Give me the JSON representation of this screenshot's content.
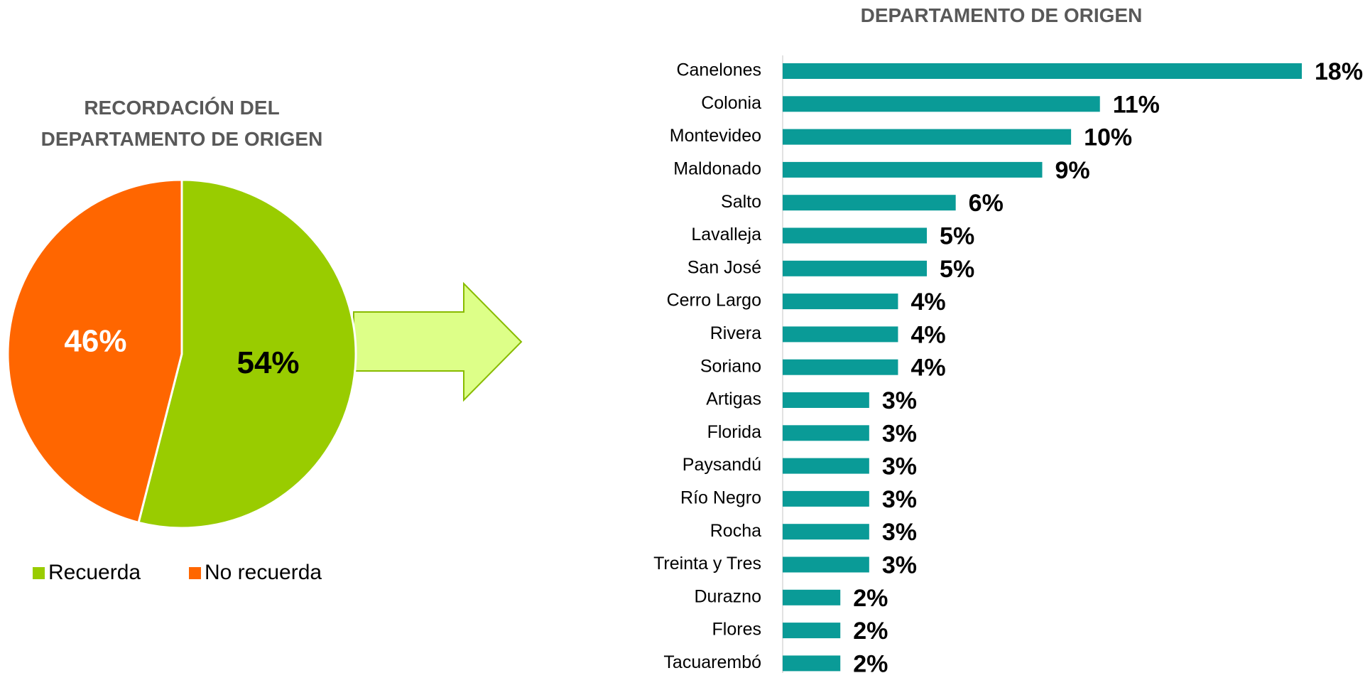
{
  "chart_data": [
    {
      "type": "pie",
      "title": "RECORDACIÓN DEL\nDEPARTAMENTO DE ORIGEN",
      "categories": [
        "Recuerda",
        "No recuerda"
      ],
      "values": [
        54,
        46
      ],
      "value_labels": [
        "54%",
        "46%"
      ],
      "colors": [
        "#99cc00",
        "#ff6600"
      ],
      "label_colors": [
        "#000000",
        "#ffffff"
      ],
      "legend": "bottom"
    },
    {
      "type": "hbar",
      "title": "DEPARTAMENTO DE ORIGEN",
      "categories": [
        "Canelones",
        "Colonia",
        "Montevideo",
        "Maldonado",
        "Salto",
        "Lavalleja",
        "San José",
        "Cerro Largo",
        "Rivera",
        "Soriano",
        "Artigas",
        "Florida",
        "Paysandú",
        "Río Negro",
        "Rocha",
        "Treinta y Tres",
        "Durazno",
        "Flores",
        "Tacuarembó"
      ],
      "values": [
        18,
        11,
        10,
        9,
        6,
        5,
        5,
        4,
        4,
        4,
        3,
        3,
        3,
        3,
        3,
        3,
        2,
        2,
        2
      ],
      "value_labels": [
        "18%",
        "11%",
        "10%",
        "9%",
        "6%",
        "5%",
        "5%",
        "4%",
        "4%",
        "4%",
        "3%",
        "3%",
        "3%",
        "3%",
        "3%",
        "3%",
        "2%",
        "2%",
        "2%"
      ],
      "color": "#0a9b97"
    }
  ]
}
